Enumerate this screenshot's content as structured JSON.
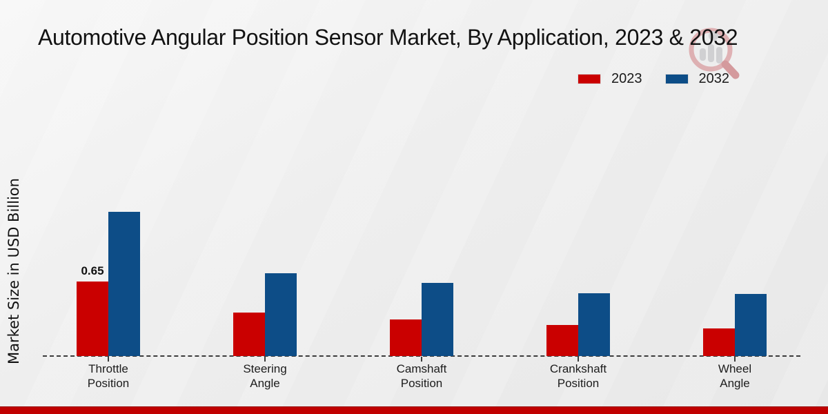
{
  "header": {
    "title": "Automotive Angular Position Sensor Market, By Application, 2023 & 2032"
  },
  "axes": {
    "ylabel": "Market Size in USD Billion"
  },
  "legend": {
    "items": [
      {
        "label": "2023",
        "color": "#ca0000"
      },
      {
        "label": "2032",
        "color": "#0d4d87"
      }
    ]
  },
  "colors": {
    "bar_2023": "#ca0000",
    "bar_2032": "#0d4d87",
    "footer_band": "#c00000",
    "baseline": "#3a3a3a",
    "text": "#1a1a1a"
  },
  "watermark": {
    "icon": "magnifier-bar-chart-logo"
  },
  "chart_data": {
    "type": "bar",
    "title": "Automotive Angular Position Sensor Market, By Application, 2023 & 2032",
    "xlabel": "",
    "ylabel": "Market Size in USD Billion",
    "categories": [
      "Throttle Position",
      "Steering Angle",
      "Camshaft Position",
      "Crankshaft Position",
      "Wheel Angle"
    ],
    "series": [
      {
        "name": "2023",
        "color": "#ca0000",
        "values": [
          0.65,
          0.38,
          0.32,
          0.27,
          0.24
        ]
      },
      {
        "name": "2032",
        "color": "#0d4d87",
        "values": [
          1.26,
          0.72,
          0.64,
          0.55,
          0.54
        ]
      }
    ],
    "value_labels": [
      {
        "series": "2023",
        "category_index": 0,
        "text": "0.65"
      }
    ],
    "ylim": [
      0,
      1.4
    ],
    "grid": false,
    "y_axis_ticks_visible": false,
    "legend_position": "top-right",
    "baseline_style": "dashed"
  }
}
